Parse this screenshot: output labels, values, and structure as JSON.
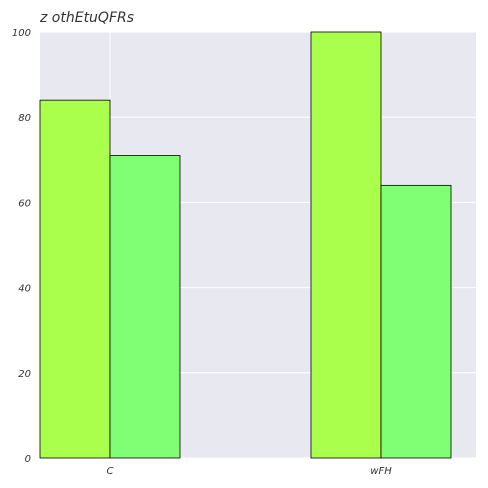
{
  "chart_data": {
    "type": "bar",
    "title": "z othEtuQFRs",
    "xlabel": "",
    "ylabel": "",
    "categories": [
      "C",
      "wFH"
    ],
    "series": [
      {
        "values": [
          84,
          100
        ],
        "color": "#aaff4c"
      },
      {
        "values": [
          71,
          64
        ],
        "color": "#80ff74"
      }
    ],
    "ylim": [
      0,
      100
    ],
    "yticks": [
      0,
      20,
      40,
      60,
      80,
      100
    ],
    "grid": true,
    "background": "#e8e8f0"
  }
}
